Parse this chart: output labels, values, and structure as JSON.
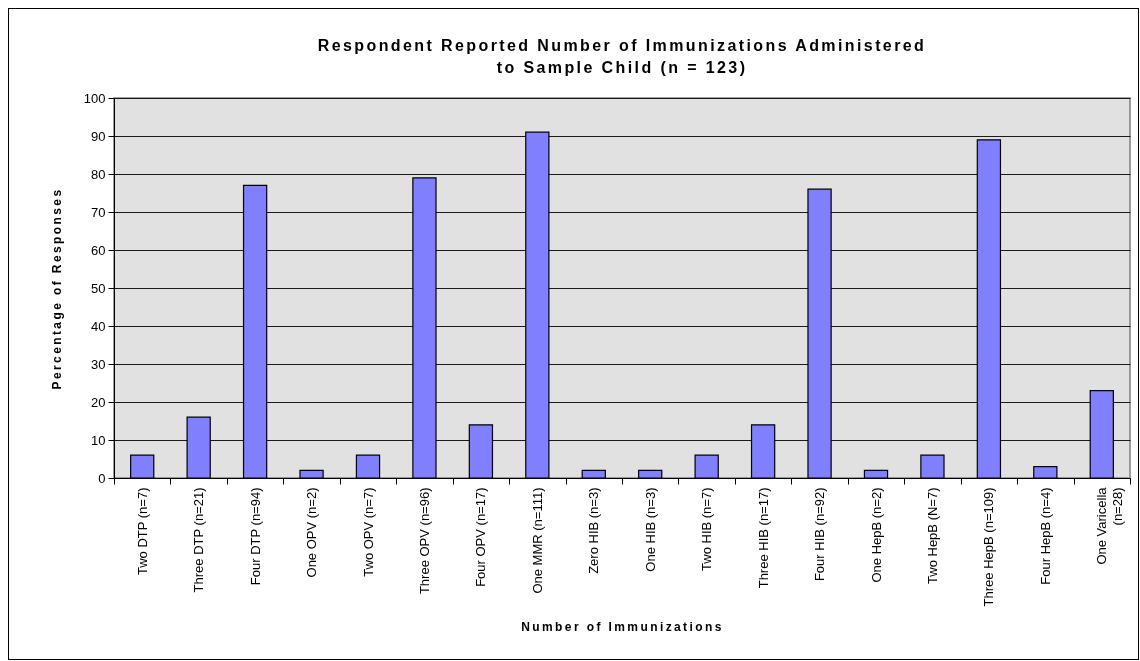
{
  "chart_data": {
    "type": "bar",
    "title": "Respondent Reported Number of Immunizations Administered to Sample Child (n = 123)",
    "xlabel": "Number of Immunizations",
    "ylabel": "Percentage of Responses",
    "categories": [
      "Two DTP (n=7)",
      "Three DTP (n=21)",
      "Four DTP (n=94)",
      "One OPV (n=2)",
      "Two OPV (n=7)",
      "Three OPV (n=96)",
      "Four OPV (n=17)",
      "One MMR (n=111)",
      "Zero HIB (n=3)",
      "One HIB (n=3)",
      "Two HIB (n=7)",
      "Three HIB (n=17)",
      "Four HIB (n=92)",
      "One HepB (n=2)",
      "Two HepB (N=7)",
      "Three HepB (n=109)",
      "Four HepB (n=4)",
      "One Varicella (n=28)"
    ],
    "values": [
      6,
      16,
      77,
      2,
      6,
      79,
      14,
      91,
      2,
      2,
      6,
      14,
      76,
      2,
      6,
      89,
      3,
      23
    ],
    "color": "#8080ff",
    "ylim": [
      0,
      100
    ],
    "yticks": [
      0,
      10,
      20,
      30,
      40,
      50,
      60,
      70,
      80,
      90,
      100
    ],
    "grid": "y"
  }
}
